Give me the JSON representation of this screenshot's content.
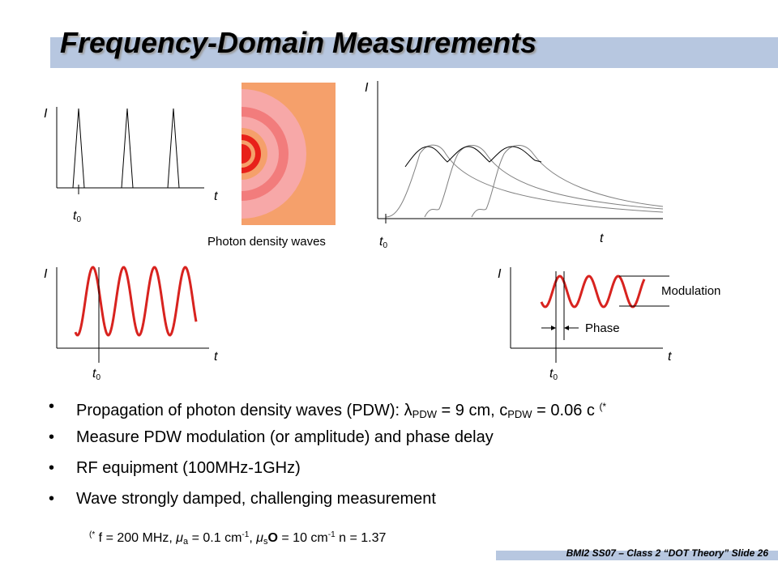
{
  "slide": {
    "title": "Frequency-Domain Measurements",
    "footer": "BMI2 SS07 – Class 2 “DOT Theory” Slide 26"
  },
  "diagrams": {
    "axis_i": "I",
    "axis_t": "t",
    "t0_base": "t",
    "t0_sub": "0",
    "photon_label": "Photon density waves",
    "modulation_label": "Modulation",
    "phase_label": "Phase"
  },
  "bullets": {
    "b1_text": "Propagation of photon density waves (PDW): ",
    "b1_lambda": "λ",
    "b1_lambda_sub": "PDW",
    "b1_mid": " = 9 cm, c",
    "b1_c_sub": "PDW",
    "b1_end": " = 0.06 c ",
    "b1_ref": "(*",
    "b2": "Measure PDW modulation (or amplitude) and phase delay",
    "b3": "RF equipment (100MHz-1GHz)",
    "b4": "Wave strongly damped, challenging measurement"
  },
  "footnote": {
    "ref": "(*",
    "f": " f = 200 MHz, ",
    "mu_a": "μ",
    "mu_a_sub": "a",
    "mu_a_val": " = 0.1 cm",
    "exp1": "-1",
    "sep": ", ",
    "mu_s": "μ",
    "mu_s_sub": "s",
    "mu_s_symbol": "O",
    "mu_s_val": " = 10 cm",
    "exp2": "-1",
    "n": " n = 1.37"
  },
  "colors": {
    "title_bar": "#b7c7e0",
    "wave_red": "#d8231f",
    "pdw_background": "#f5a06b",
    "pdw_ring_light": "#f7a8a8",
    "pdw_ring_mid": "#f27c7c",
    "pdw_core": "#e8201a"
  }
}
